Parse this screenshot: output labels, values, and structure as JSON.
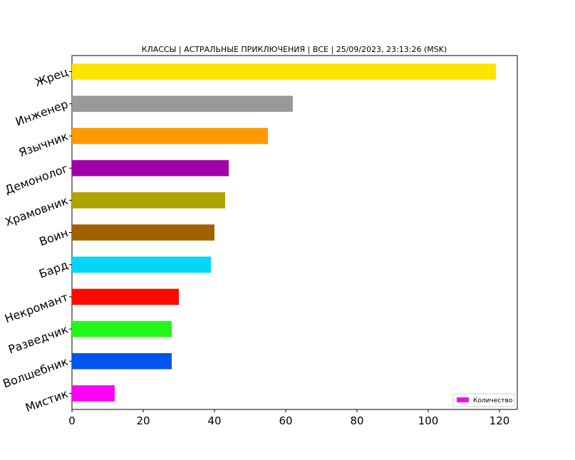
{
  "chart_data": {
    "type": "bar",
    "orientation": "horizontal",
    "title": "КЛАССЫ | АСТРАЛЬНЫЕ ПРИКЛЮЧЕНИЯ | ВСЕ | 25/09/2023, 23:13:26 (MSK)",
    "xlabel": "",
    "ylabel": "",
    "xlim": [
      0,
      125
    ],
    "xticks": [
      0,
      20,
      40,
      60,
      80,
      100,
      120
    ],
    "grid": false,
    "legend": {
      "placement": "bottom-right",
      "entries": [
        "Количество"
      ],
      "color": "#ee11ee"
    },
    "categories": [
      "Жрец",
      "Инженер",
      "Язычник",
      "Демонолог",
      "Храмовник",
      "Воин",
      "Бард",
      "Некромант",
      "Разведчик",
      "Волшебник",
      "Мистик"
    ],
    "series": [
      {
        "name": "Количество",
        "values": [
          119,
          62,
          55,
          44,
          43,
          40,
          39,
          30,
          28,
          28,
          12
        ],
        "colors": [
          "#fce400",
          "#999999",
          "#fd9a00",
          "#a100a8",
          "#b0a200",
          "#a06200",
          "#00d8f8",
          "#ff0800",
          "#22f818",
          "#0055ee",
          "#ff00f8"
        ]
      }
    ]
  }
}
